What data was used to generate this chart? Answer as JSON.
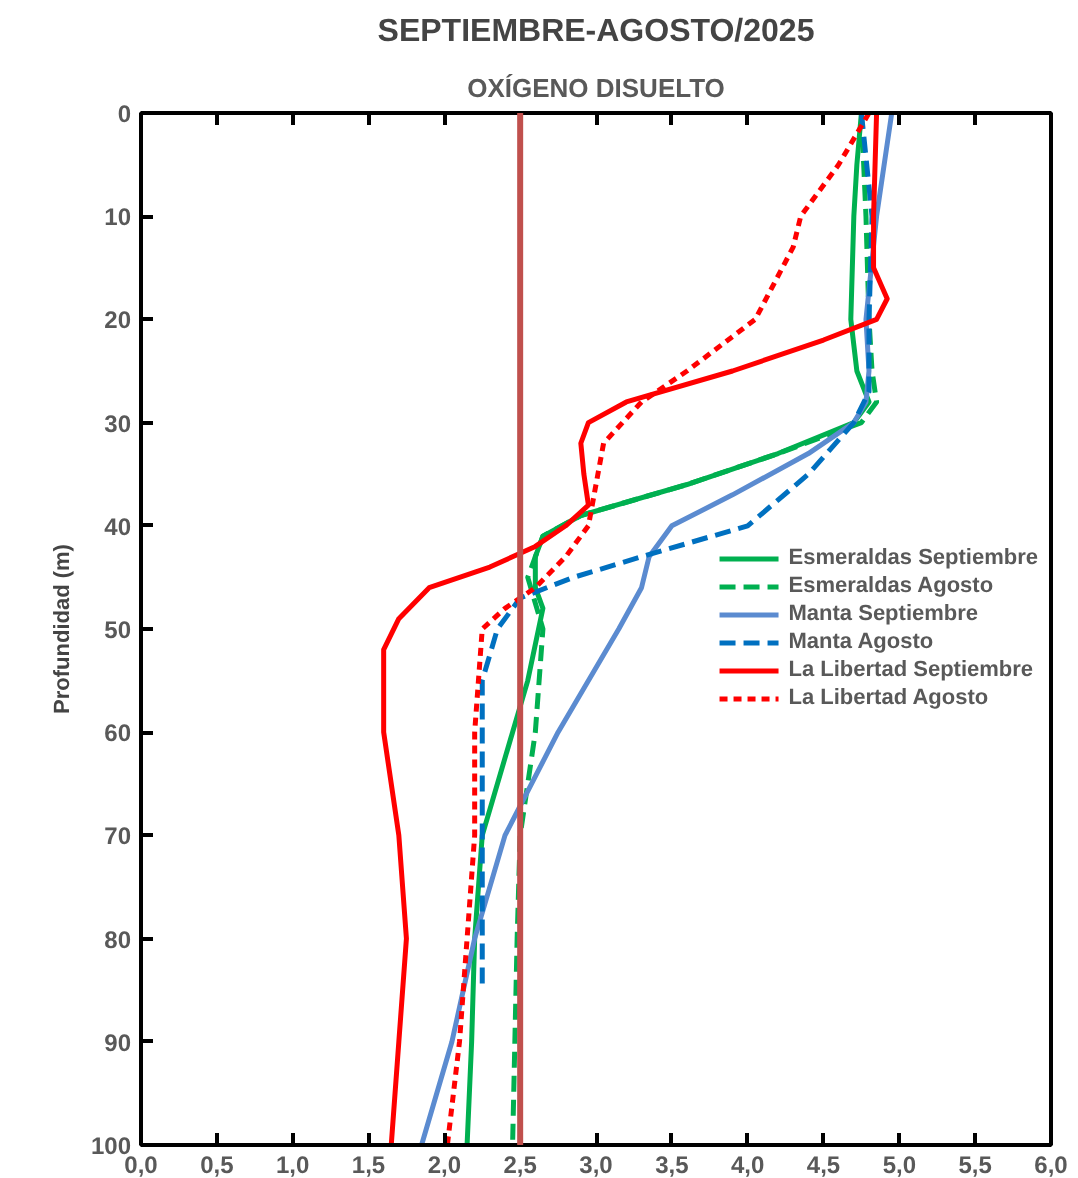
{
  "chart_data": {
    "type": "line",
    "title": "SEPTIEMBRE-AGOSTO/2025",
    "subtitle": "OXÍGENO DISUELTO",
    "ylabel": "Profundidad (m)",
    "xlim": [
      0,
      6
    ],
    "xticks": [
      {
        "value": 0,
        "label": "0,0"
      },
      {
        "value": 0.5,
        "label": "0,5"
      },
      {
        "value": 1,
        "label": "1,0"
      },
      {
        "value": 1.5,
        "label": "1,5"
      },
      {
        "value": 2,
        "label": "2,0"
      },
      {
        "value": 2.5,
        "label": "2,5"
      },
      {
        "value": 3,
        "label": "3,0"
      },
      {
        "value": 3.5,
        "label": "3,5"
      },
      {
        "value": 4,
        "label": "4,0"
      },
      {
        "value": 4.5,
        "label": "4,5"
      },
      {
        "value": 5,
        "label": "5,0"
      },
      {
        "value": 5.5,
        "label": "5,5"
      },
      {
        "value": 6,
        "label": "6,0"
      }
    ],
    "ylim": [
      100,
      0
    ],
    "yticks": [
      0,
      10,
      20,
      30,
      40,
      50,
      60,
      70,
      80,
      90,
      100
    ],
    "grid": false,
    "legend": "right",
    "marker": "none",
    "ref_lines": [
      {
        "axis": "x",
        "value": 2.5,
        "color": "#c0504d",
        "line_style": "solid"
      }
    ],
    "series": [
      {
        "name": "Esmeraldas Septiembre",
        "color": "#00b050",
        "line_style": "solid",
        "x": [
          4.75,
          4.72,
          4.7,
          4.68,
          4.72,
          4.8,
          4.7,
          4.2,
          3.6,
          2.9,
          2.65,
          2.6,
          2.6,
          2.65,
          2.55,
          2.45,
          2.25,
          2.2,
          2.18,
          2.15
        ],
        "values": [
          0,
          5,
          10,
          20,
          25,
          28,
          30,
          33,
          36,
          39,
          41,
          43,
          46,
          48,
          55,
          60,
          70,
          80,
          90,
          100
        ]
      },
      {
        "name": "Esmeraldas Agosto",
        "color": "#00b050",
        "line_style": "dashed",
        "x": [
          4.75,
          4.78,
          4.8,
          4.82,
          4.85,
          4.75,
          4.2,
          3.6,
          2.9,
          2.65,
          2.55,
          2.65,
          2.6,
          2.5,
          2.48,
          2.45
        ],
        "values": [
          0,
          10,
          20,
          25,
          28,
          30,
          33,
          36,
          39,
          41,
          45,
          50,
          60,
          70,
          80,
          100
        ]
      },
      {
        "name": "Manta Septiembre",
        "color": "#5b8bd0",
        "line_style": "solid",
        "x": [
          4.95,
          4.85,
          4.78,
          4.8,
          4.78,
          4.7,
          4.4,
          3.9,
          3.5,
          3.35,
          3.3,
          3.15,
          2.75,
          2.4,
          2.2,
          2.05,
          1.85
        ],
        "values": [
          0,
          10,
          20,
          25,
          28,
          30,
          33,
          37,
          40,
          43,
          46,
          50,
          60,
          70,
          80,
          90,
          100
        ]
      },
      {
        "name": "Manta Agosto",
        "color": "#0070c0",
        "line_style": "dashed",
        "x": [
          4.75,
          4.82,
          4.8,
          4.8,
          4.7,
          4.4,
          4.0,
          3.3,
          2.85,
          2.5,
          2.35,
          2.25,
          2.25,
          2.25,
          2.25
        ],
        "values": [
          0,
          10,
          20,
          27,
          30,
          35,
          40,
          43,
          45,
          47,
          50,
          55,
          70,
          80,
          85
        ]
      },
      {
        "name": "La Libertad Septiembre",
        "color": "#ff0000",
        "line_style": "solid",
        "x": [
          4.85,
          4.83,
          4.83,
          4.92,
          4.85,
          4.5,
          3.9,
          3.2,
          2.95,
          2.9,
          2.92,
          2.95,
          2.8,
          2.6,
          2.3,
          1.9,
          1.7,
          1.6,
          1.6,
          1.7,
          1.75,
          1.7,
          1.65
        ],
        "values": [
          0,
          10,
          15,
          18,
          20,
          22,
          25,
          28,
          30,
          32,
          35,
          38,
          40,
          42,
          44,
          46,
          49,
          52,
          60,
          70,
          80,
          90,
          100
        ]
      },
      {
        "name": "La Libertad Agosto",
        "color": "#ff0000",
        "line_style": "dotted",
        "x": [
          4.8,
          4.6,
          4.35,
          4.3,
          4.05,
          3.6,
          3.3,
          3.05,
          3.0,
          2.95,
          2.8,
          2.6,
          2.4,
          2.25,
          2.2,
          2.2,
          2.15,
          2.1,
          2.02
        ],
        "values": [
          0,
          5,
          10,
          13,
          20,
          25,
          28,
          32,
          36,
          40,
          43,
          46,
          48,
          50,
          60,
          70,
          80,
          90,
          100
        ]
      }
    ]
  }
}
